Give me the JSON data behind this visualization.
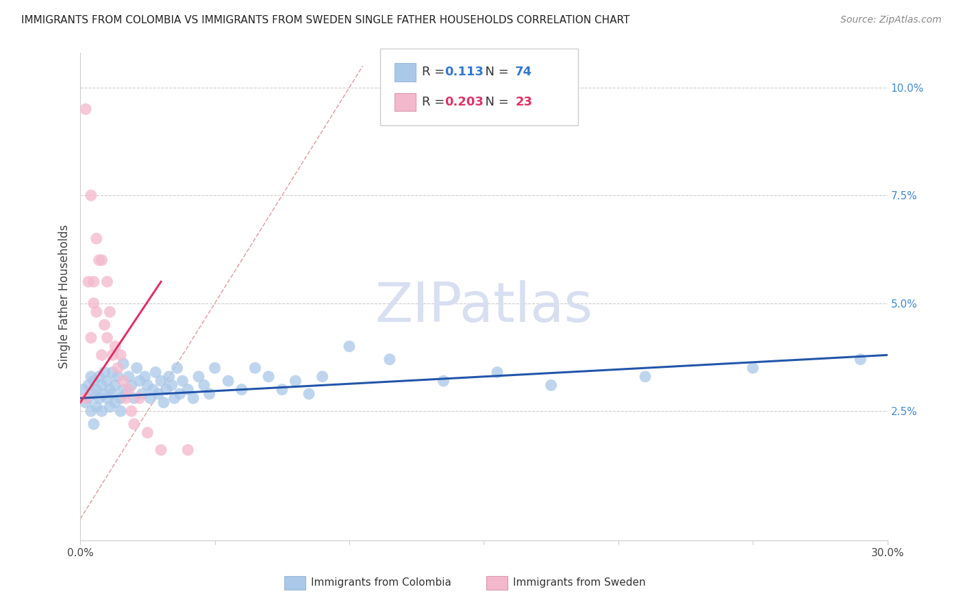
{
  "title": "IMMIGRANTS FROM COLOMBIA VS IMMIGRANTS FROM SWEDEN SINGLE FATHER HOUSEHOLDS CORRELATION CHART",
  "source": "Source: ZipAtlas.com",
  "xlabel_colombia": "Immigrants from Colombia",
  "xlabel_sweden": "Immigrants from Sweden",
  "ylabel": "Single Father Households",
  "r_colombia": 0.113,
  "n_colombia": 74,
  "r_sweden": 0.203,
  "n_sweden": 23,
  "xlim": [
    0.0,
    0.3
  ],
  "ylim": [
    -0.005,
    0.108
  ],
  "yticks": [
    0.025,
    0.05,
    0.075,
    0.1
  ],
  "ytick_labels": [
    "2.5%",
    "5.0%",
    "7.5%",
    "10.0%"
  ],
  "xticks": [
    0.0,
    0.05,
    0.1,
    0.15,
    0.2,
    0.25,
    0.3
  ],
  "xtick_labels": [
    "0.0%",
    "",
    "",
    "",
    "",
    "",
    "30.0%"
  ],
  "color_colombia": "#aac8e8",
  "color_sweden": "#f4b8cc",
  "line_colombia": "#2255aa",
  "line_sweden": "#dd3366",
  "watermark_text": "ZIPatlas",
  "watermark_color": "#d8dff0",
  "colombia_x": [
    0.001,
    0.002,
    0.003,
    0.003,
    0.004,
    0.004,
    0.005,
    0.005,
    0.005,
    0.006,
    0.006,
    0.007,
    0.007,
    0.008,
    0.008,
    0.009,
    0.009,
    0.01,
    0.01,
    0.011,
    0.011,
    0.012,
    0.012,
    0.013,
    0.013,
    0.014,
    0.015,
    0.015,
    0.016,
    0.016,
    0.017,
    0.018,
    0.019,
    0.02,
    0.021,
    0.022,
    0.023,
    0.024,
    0.025,
    0.026,
    0.027,
    0.028,
    0.029,
    0.03,
    0.031,
    0.032,
    0.033,
    0.034,
    0.035,
    0.036,
    0.037,
    0.038,
    0.04,
    0.042,
    0.044,
    0.046,
    0.048,
    0.05,
    0.055,
    0.06,
    0.065,
    0.07,
    0.075,
    0.08,
    0.085,
    0.09,
    0.1,
    0.115,
    0.135,
    0.155,
    0.175,
    0.21,
    0.25,
    0.29
  ],
  "colombia_y": [
    0.03,
    0.027,
    0.031,
    0.028,
    0.033,
    0.025,
    0.029,
    0.032,
    0.022,
    0.03,
    0.026,
    0.028,
    0.033,
    0.031,
    0.025,
    0.029,
    0.034,
    0.028,
    0.032,
    0.026,
    0.03,
    0.029,
    0.034,
    0.027,
    0.031,
    0.033,
    0.028,
    0.025,
    0.03,
    0.036,
    0.029,
    0.033,
    0.031,
    0.028,
    0.035,
    0.032,
    0.029,
    0.033,
    0.031,
    0.028,
    0.03,
    0.034,
    0.029,
    0.032,
    0.027,
    0.03,
    0.033,
    0.031,
    0.028,
    0.035,
    0.029,
    0.032,
    0.03,
    0.028,
    0.033,
    0.031,
    0.029,
    0.035,
    0.032,
    0.03,
    0.035,
    0.033,
    0.03,
    0.032,
    0.029,
    0.033,
    0.04,
    0.037,
    0.032,
    0.034,
    0.031,
    0.033,
    0.035,
    0.037
  ],
  "sweden_x": [
    0.002,
    0.003,
    0.004,
    0.005,
    0.006,
    0.007,
    0.008,
    0.009,
    0.01,
    0.011,
    0.012,
    0.013,
    0.014,
    0.015,
    0.016,
    0.017,
    0.018,
    0.019,
    0.02,
    0.022,
    0.025,
    0.03,
    0.04
  ],
  "sweden_y": [
    0.028,
    0.055,
    0.042,
    0.055,
    0.048,
    0.06,
    0.038,
    0.045,
    0.042,
    0.048,
    0.038,
    0.04,
    0.035,
    0.038,
    0.032,
    0.028,
    0.03,
    0.025,
    0.022,
    0.028,
    0.02,
    0.016,
    0.016
  ],
  "sweden_outliers_x": [
    0.002,
    0.004,
    0.006,
    0.008,
    0.01,
    0.005
  ],
  "sweden_outliers_y": [
    0.095,
    0.075,
    0.065,
    0.06,
    0.055,
    0.05
  ],
  "ref_line_x": [
    0.0,
    0.105
  ],
  "ref_line_y": [
    0.0,
    0.105
  ]
}
